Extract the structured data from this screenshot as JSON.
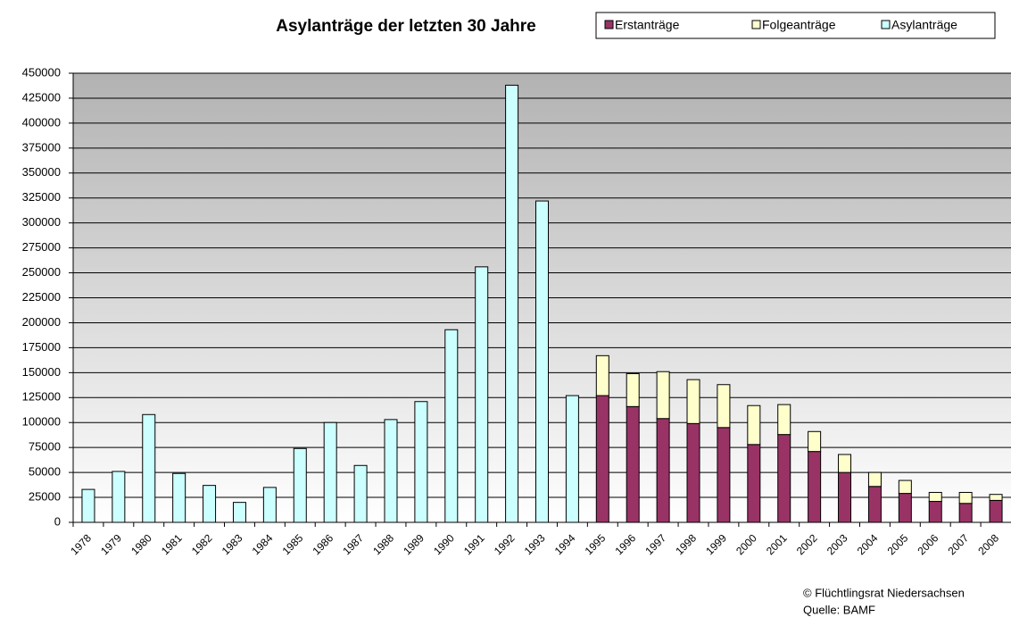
{
  "chart_data": {
    "type": "stacked_bar",
    "title": "Asylanträge der letzten 30 Jahre",
    "categories": [
      "1978",
      "1979",
      "1980",
      "1981",
      "1982",
      "1983",
      "1984",
      "1985",
      "1986",
      "1987",
      "1988",
      "1989",
      "1990",
      "1991",
      "1992",
      "1993",
      "1994",
      "1995",
      "1996",
      "1997",
      "1998",
      "1999",
      "2000",
      "2001",
      "2002",
      "2003",
      "2004",
      "2005",
      "2006",
      "2007",
      "2008"
    ],
    "series": [
      {
        "name": "Erstanträge",
        "color": "#993366",
        "values": [
          null,
          null,
          null,
          null,
          null,
          null,
          null,
          null,
          null,
          null,
          null,
          null,
          null,
          null,
          null,
          null,
          null,
          127000,
          116000,
          104000,
          99000,
          95000,
          78000,
          88000,
          71000,
          50000,
          36000,
          29000,
          21000,
          19000,
          22000
        ]
      },
      {
        "name": "Folgeanträge",
        "color": "#ffffcc",
        "values": [
          null,
          null,
          null,
          null,
          null,
          null,
          null,
          null,
          null,
          null,
          null,
          null,
          null,
          null,
          null,
          null,
          null,
          40000,
          33000,
          47000,
          44000,
          43000,
          39000,
          30000,
          20000,
          18000,
          14000,
          13000,
          9000,
          11000,
          6000
        ]
      },
      {
        "name": "Asylanträge",
        "color": "#ccffff",
        "values": [
          33000,
          51000,
          108000,
          49000,
          37000,
          20000,
          35000,
          74000,
          100000,
          57000,
          103000,
          121000,
          193000,
          256000,
          438000,
          322000,
          127000,
          null,
          null,
          null,
          null,
          null,
          null,
          null,
          null,
          null,
          null,
          null,
          null,
          null,
          null
        ]
      }
    ],
    "ylim": [
      0,
      450000
    ],
    "yticks": [
      0,
      25000,
      50000,
      75000,
      100000,
      125000,
      150000,
      175000,
      200000,
      225000,
      250000,
      275000,
      300000,
      325000,
      350000,
      375000,
      400000,
      425000,
      450000
    ],
    "grid": true,
    "footer": [
      "© Flüchtlingsrat Niedersachsen",
      "Quelle: BAMF"
    ]
  }
}
